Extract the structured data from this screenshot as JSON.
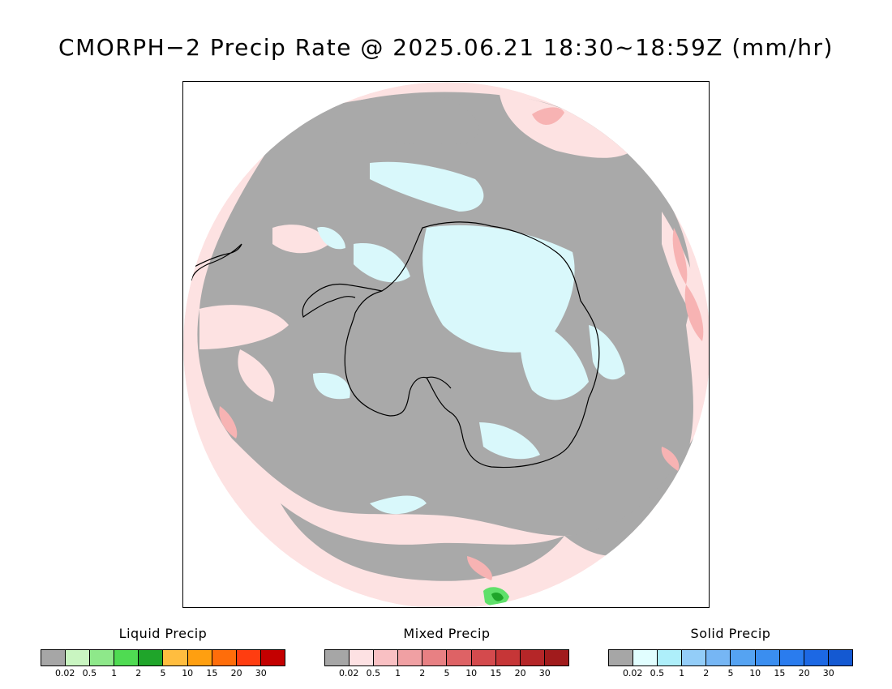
{
  "title": "CMORPH−2 Precip Rate @ 2025.06.21 18:30~18:59Z (mm/hr)",
  "map": {
    "projection": "south-polar-stereographic",
    "colors": {
      "no_precip": "#a9a9a9",
      "coastline": "#000000",
      "mixed_light": "#fde2e2",
      "mixed_medium": "#f7b3b3",
      "mixed_heavy": "#e88686",
      "solid_light": "#d9f8fb",
      "liquid_light": "#5fe06a",
      "liquid_dark": "#1fa52a"
    }
  },
  "legends": [
    {
      "title": "Liquid Precip",
      "colors": [
        "#a6a6a6",
        "#c9f5c1",
        "#8ee88a",
        "#4fdb52",
        "#1fa52a",
        "#ffbd3f",
        "#ff9f10",
        "#ff6d0a",
        "#ff3d10",
        "#c40000"
      ],
      "ticks": [
        "0.02",
        "0.5",
        "1",
        "2",
        "5",
        "10",
        "15",
        "20",
        "30"
      ]
    },
    {
      "title": "Mixed Precip",
      "colors": [
        "#a6a6a6",
        "#fde1e3",
        "#f9c0c3",
        "#f0a0a3",
        "#e88083",
        "#de6265",
        "#d44a4d",
        "#c63637",
        "#b52628",
        "#a11b1c"
      ],
      "ticks": [
        "0.02",
        "0.5",
        "1",
        "2",
        "5",
        "10",
        "15",
        "20",
        "30"
      ]
    },
    {
      "title": "Solid Precip",
      "colors": [
        "#a6a6a6",
        "#e1feff",
        "#aeeffa",
        "#93cdf8",
        "#76b6f4",
        "#55a3f2",
        "#3a8ef0",
        "#2a7cee",
        "#1c68e4",
        "#1459d2"
      ],
      "ticks": [
        "0.02",
        "0.5",
        "1",
        "2",
        "5",
        "10",
        "15",
        "20",
        "30"
      ]
    }
  ]
}
